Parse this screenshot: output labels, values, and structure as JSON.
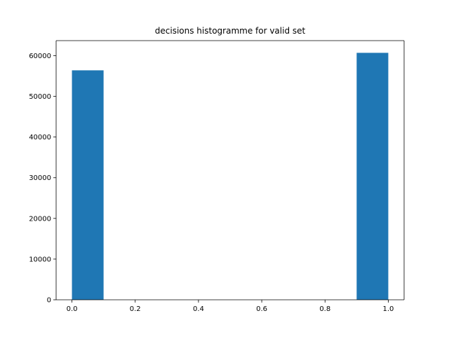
{
  "chart_data": {
    "type": "bar",
    "title": "decisions histogramme for valid set",
    "xlabel": "",
    "ylabel": "",
    "xlim": [
      -0.05,
      1.05
    ],
    "ylim": [
      0,
      63700
    ],
    "grid": false,
    "legend": "none",
    "bin_edges": [
      0.0,
      0.1,
      0.2,
      0.3,
      0.4,
      0.5,
      0.6,
      0.7,
      0.8,
      0.9,
      1.0
    ],
    "counts": [
      56400,
      0,
      0,
      0,
      0,
      0,
      0,
      0,
      0,
      60700
    ],
    "bars": [
      {
        "x0": 0.0,
        "x1": 0.1,
        "value": 56400
      },
      {
        "x0": 0.9,
        "x1": 1.0,
        "value": 60700
      }
    ],
    "x_ticks": [
      {
        "value": 0.0,
        "label": "0.0"
      },
      {
        "value": 0.2,
        "label": "0.2"
      },
      {
        "value": 0.4,
        "label": "0.4"
      },
      {
        "value": 0.6,
        "label": "0.6"
      },
      {
        "value": 0.8,
        "label": "0.8"
      },
      {
        "value": 1.0,
        "label": "1.0"
      }
    ],
    "y_ticks": [
      {
        "value": 0,
        "label": "0"
      },
      {
        "value": 10000,
        "label": "10000"
      },
      {
        "value": 20000,
        "label": "20000"
      },
      {
        "value": 30000,
        "label": "30000"
      },
      {
        "value": 40000,
        "label": "40000"
      },
      {
        "value": 50000,
        "label": "50000"
      },
      {
        "value": 60000,
        "label": "60000"
      }
    ],
    "colors": {
      "bar": "#1f77b4",
      "axes": "#000000",
      "background": "#ffffff"
    }
  }
}
